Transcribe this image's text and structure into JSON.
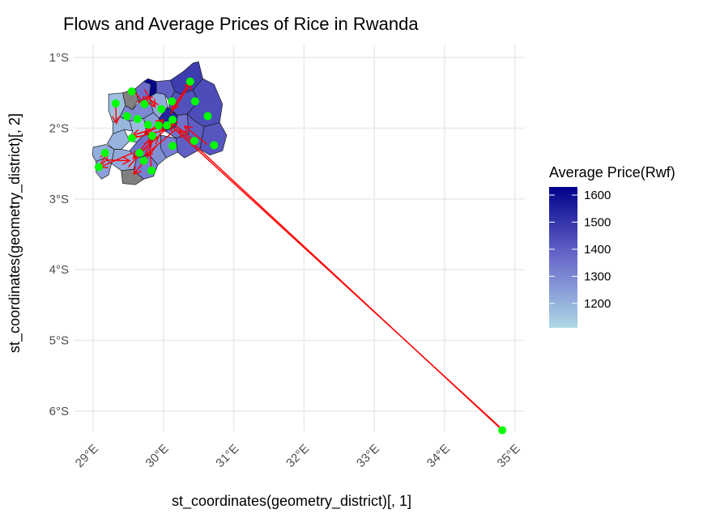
{
  "chart_data": {
    "type": "map",
    "title": "Flows and Average Prices of Rice in Rwanda",
    "xlabel": "st_coordinates(geometry_district)[, 1]",
    "ylabel": "st_coordinates(geometry_district)[, 2]",
    "x_ticks": [
      {
        "value": 29,
        "label": "29°E"
      },
      {
        "value": 30,
        "label": "30°E"
      },
      {
        "value": 31,
        "label": "31°E"
      },
      {
        "value": 32,
        "label": "32°E"
      },
      {
        "value": 33,
        "label": "33°E"
      },
      {
        "value": 34,
        "label": "34°E"
      },
      {
        "value": 35,
        "label": "35°E"
      }
    ],
    "y_ticks": [
      {
        "value": -1,
        "label": "1°S"
      },
      {
        "value": -2,
        "label": "2°S"
      },
      {
        "value": -3,
        "label": "3°S"
      },
      {
        "value": -4,
        "label": "4°S"
      },
      {
        "value": -5,
        "label": "5°S"
      },
      {
        "value": -6,
        "label": "6°S"
      }
    ],
    "xlim": [
      28.6,
      35.3
    ],
    "ylim": [
      -6.65,
      -0.8
    ],
    "grid": true,
    "legend": {
      "title": "Average Price(Rwf)",
      "placement": "right",
      "min": 1110,
      "max": 1630,
      "ticks": [
        1200,
        1300,
        1400,
        1500,
        1600
      ],
      "color_low": "#add8e6",
      "color_mid": "#6a6acb",
      "color_high": "#00008b"
    },
    "na_color": "#808080",
    "flow_color": "#ff0000",
    "point_color": "#00ff00",
    "points": [
      {
        "lon": 29.48,
        "lat": -1.83
      },
      {
        "lon": 29.32,
        "lat": -1.65
      },
      {
        "lon": 29.55,
        "lat": -1.48
      },
      {
        "lon": 29.73,
        "lat": -1.66
      },
      {
        "lon": 29.97,
        "lat": -1.73
      },
      {
        "lon": 30.12,
        "lat": -1.62
      },
      {
        "lon": 30.38,
        "lat": -1.34
      },
      {
        "lon": 30.45,
        "lat": -1.62
      },
      {
        "lon": 30.63,
        "lat": -1.83
      },
      {
        "lon": 29.63,
        "lat": -1.87
      },
      {
        "lon": 29.78,
        "lat": -1.95
      },
      {
        "lon": 29.93,
        "lat": -1.96
      },
      {
        "lon": 30.05,
        "lat": -1.96
      },
      {
        "lon": 30.13,
        "lat": -1.88
      },
      {
        "lon": 30.13,
        "lat": -2.25
      },
      {
        "lon": 30.44,
        "lat": -2.18
      },
      {
        "lon": 30.72,
        "lat": -2.24
      },
      {
        "lon": 29.55,
        "lat": -2.14
      },
      {
        "lon": 29.84,
        "lat": -2.11
      },
      {
        "lon": 29.66,
        "lat": -2.35
      },
      {
        "lon": 29.17,
        "lat": -2.35
      },
      {
        "lon": 29.08,
        "lat": -2.55
      },
      {
        "lon": 29.72,
        "lat": -2.46
      },
      {
        "lon": 29.83,
        "lat": -2.6
      },
      {
        "lon": 34.82,
        "lat": -6.27
      }
    ],
    "flows": [
      {
        "from": [
          34.82,
          -6.27
        ],
        "to": [
          30.22,
          -2.03
        ]
      },
      {
        "from": [
          34.78,
          -6.22
        ],
        "to": [
          30.08,
          -1.94
        ]
      },
      {
        "from": [
          30.38,
          -1.34
        ],
        "to": [
          30.12,
          -1.74
        ]
      },
      {
        "from": [
          30.1,
          -1.8
        ],
        "to": [
          30.4,
          -1.35
        ]
      },
      {
        "from": [
          29.32,
          -1.65
        ],
        "to": [
          29.33,
          -1.93
        ]
      },
      {
        "from": [
          29.6,
          -1.5
        ],
        "to": [
          29.73,
          -1.66
        ]
      },
      {
        "from": [
          29.73,
          -1.45
        ],
        "to": [
          29.88,
          -1.7
        ]
      },
      {
        "from": [
          29.93,
          -1.67
        ],
        "to": [
          29.74,
          -1.56
        ]
      },
      {
        "from": [
          29.62,
          -2.08
        ],
        "to": [
          30.05,
          -1.96
        ]
      },
      {
        "from": [
          30.05,
          -1.96
        ],
        "to": [
          29.56,
          -2.1
        ]
      },
      {
        "from": [
          29.55,
          -2.14
        ],
        "to": [
          30.02,
          -2.03
        ]
      },
      {
        "from": [
          30.2,
          -2.0
        ],
        "to": [
          29.74,
          -2.38
        ]
      },
      {
        "from": [
          29.83,
          -2.6
        ],
        "to": [
          29.78,
          -1.97
        ]
      },
      {
        "from": [
          29.66,
          -2.35
        ],
        "to": [
          29.93,
          -2.12
        ]
      },
      {
        "from": [
          29.84,
          -2.11
        ],
        "to": [
          29.57,
          -2.43
        ]
      },
      {
        "from": [
          29.5,
          -2.55
        ],
        "to": [
          29.84,
          -2.18
        ]
      },
      {
        "from": [
          29.9,
          -2.25
        ],
        "to": [
          29.58,
          -2.65
        ]
      },
      {
        "from": [
          29.17,
          -2.45
        ],
        "to": [
          29.52,
          -2.46
        ]
      },
      {
        "from": [
          29.56,
          -2.35
        ],
        "to": [
          29.1,
          -2.55
        ]
      },
      {
        "from": [
          29.08,
          -2.55
        ],
        "to": [
          29.2,
          -2.35
        ]
      },
      {
        "from": [
          29.73,
          -2.1
        ],
        "to": [
          30.0,
          -1.88
        ]
      },
      {
        "from": [
          30.62,
          -2.23
        ],
        "to": [
          30.3,
          -1.97
        ]
      },
      {
        "from": [
          30.44,
          -2.18
        ],
        "to": [
          30.1,
          -1.9
        ]
      }
    ]
  }
}
